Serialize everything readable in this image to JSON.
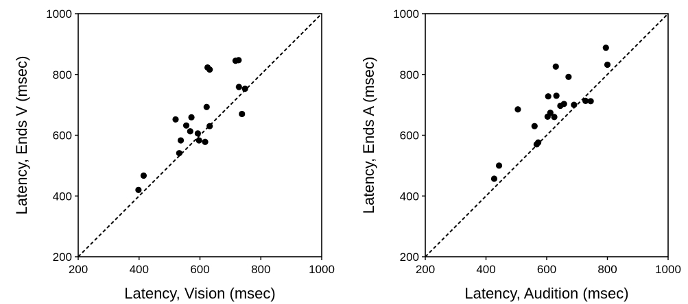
{
  "chart_data": [
    {
      "type": "scatter",
      "xlabel": "Latency, Vision (msec)",
      "ylabel": "Latency, Ends V (msec)",
      "xlim": [
        200,
        1000
      ],
      "ylim": [
        200,
        1000
      ],
      "xticks": [
        "200",
        "400",
        "600",
        "800",
        "1000"
      ],
      "yticks": [
        "200",
        "400",
        "600",
        "800",
        "1000"
      ],
      "reference_line": "y = x (dashed)",
      "grid": false,
      "points": [
        {
          "x": 398,
          "y": 420
        },
        {
          "x": 415,
          "y": 467
        },
        {
          "x": 520,
          "y": 652
        },
        {
          "x": 532,
          "y": 541
        },
        {
          "x": 537,
          "y": 583
        },
        {
          "x": 555,
          "y": 632
        },
        {
          "x": 568,
          "y": 613
        },
        {
          "x": 572,
          "y": 659
        },
        {
          "x": 593,
          "y": 606
        },
        {
          "x": 597,
          "y": 583
        },
        {
          "x": 617,
          "y": 578
        },
        {
          "x": 622,
          "y": 693
        },
        {
          "x": 625,
          "y": 823
        },
        {
          "x": 632,
          "y": 816
        },
        {
          "x": 632,
          "y": 630
        },
        {
          "x": 717,
          "y": 845
        },
        {
          "x": 727,
          "y": 847
        },
        {
          "x": 728,
          "y": 759
        },
        {
          "x": 738,
          "y": 670
        },
        {
          "x": 748,
          "y": 753
        }
      ]
    },
    {
      "type": "scatter",
      "xlabel": "Latency, Audition (msec)",
      "ylabel": "Latency, Ends A (msec)",
      "xlim": [
        200,
        1000
      ],
      "ylim": [
        200,
        1000
      ],
      "xticks": [
        "200",
        "400",
        "600",
        "800",
        "1000"
      ],
      "yticks": [
        "200",
        "400",
        "600",
        "800",
        "1000"
      ],
      "reference_line": "y = x (dashed)",
      "grid": false,
      "points": [
        {
          "x": 427,
          "y": 457
        },
        {
          "x": 443,
          "y": 500
        },
        {
          "x": 505,
          "y": 685
        },
        {
          "x": 560,
          "y": 630
        },
        {
          "x": 567,
          "y": 570
        },
        {
          "x": 572,
          "y": 576
        },
        {
          "x": 603,
          "y": 661
        },
        {
          "x": 605,
          "y": 728
        },
        {
          "x": 612,
          "y": 674
        },
        {
          "x": 625,
          "y": 660
        },
        {
          "x": 630,
          "y": 826
        },
        {
          "x": 632,
          "y": 730
        },
        {
          "x": 645,
          "y": 697
        },
        {
          "x": 657,
          "y": 703
        },
        {
          "x": 672,
          "y": 792
        },
        {
          "x": 690,
          "y": 700
        },
        {
          "x": 728,
          "y": 713
        },
        {
          "x": 745,
          "y": 712
        },
        {
          "x": 795,
          "y": 888
        },
        {
          "x": 800,
          "y": 832
        }
      ]
    }
  ]
}
